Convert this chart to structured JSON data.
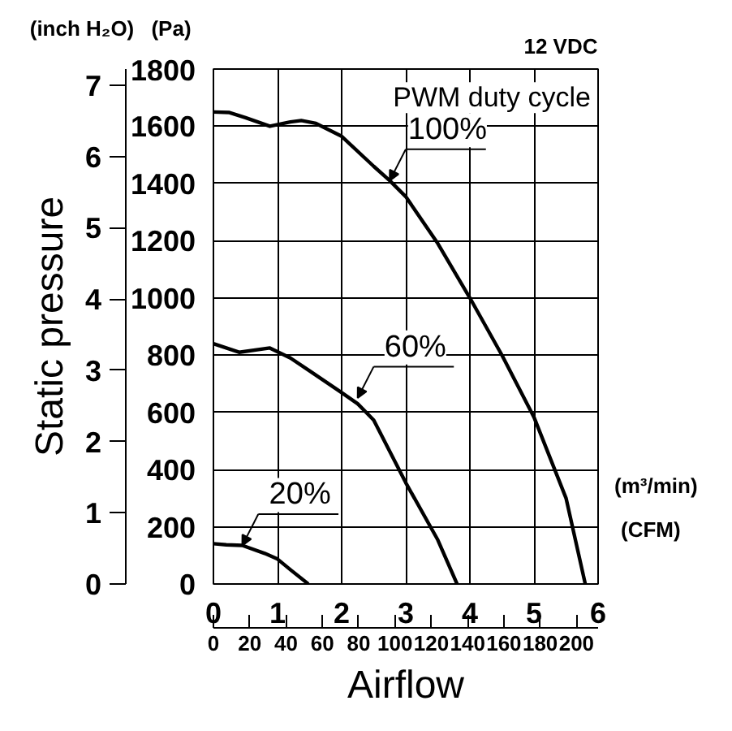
{
  "chart_data": {
    "type": "line",
    "xlabel": "Airflow",
    "ylabel": "Static pressure",
    "xlim": [
      0,
      6
    ],
    "xticks": [
      0,
      1,
      2,
      3,
      4,
      5,
      6
    ],
    "ylim": [
      0,
      7.226
    ],
    "yticks": [
      0,
      1,
      2,
      3,
      4,
      5,
      6,
      7
    ],
    "y2lim": [
      0,
      1800
    ],
    "y2ticks": [
      0,
      200,
      400,
      600,
      800,
      1000,
      1200,
      1400,
      1600,
      1800
    ],
    "x2lim": [
      0,
      211.9
    ],
    "x2ticks": [
      0,
      20,
      40,
      60,
      80,
      100,
      120,
      140,
      160,
      180,
      200
    ],
    "grid": true,
    "marker": "none",
    "line_style": "solid",
    "series": [
      {
        "color": "#000000",
        "axis": "y2",
        "x": [
          0,
          0.25,
          0.5,
          0.88,
          1.2,
          1.37,
          1.6,
          2,
          2.5,
          2.75,
          3,
          3.5,
          4,
          4.5,
          5,
          5.5,
          5.8
        ],
        "values": [
          1650,
          1648,
          1630,
          1600,
          1615,
          1620,
          1610,
          1565,
          1460,
          1410,
          1354,
          1190,
          1000,
          800,
          583,
          300,
          0
        ]
      },
      {
        "color": "#000000",
        "axis": "y2",
        "x": [
          0,
          0.4,
          0.88,
          1.2,
          1.5,
          2,
          2.25,
          2.5,
          3,
          3.5,
          3.8
        ],
        "values": [
          840,
          810,
          825,
          790,
          745,
          669,
          630,
          573,
          354,
          154,
          0
        ]
      },
      {
        "color": "#000000",
        "axis": "y2",
        "x": [
          0,
          0.2,
          0.45,
          0.8,
          1,
          1.2,
          1.48
        ],
        "values": [
          141,
          137,
          135,
          107,
          87,
          50,
          0
        ]
      }
    ],
    "annotations": [
      "(inch H₂O)",
      "(Pa)",
      "12 VDC",
      "PWM duty cycle",
      "(m³/min)",
      "(CFM)",
      {
        "text": "100%",
        "x": 2.75,
        "y": 5.66
      },
      {
        "text": "60%",
        "x": 2.25,
        "y": 2.61
      },
      {
        "text": "20%",
        "x": 0.45,
        "y": 0.54
      }
    ]
  }
}
